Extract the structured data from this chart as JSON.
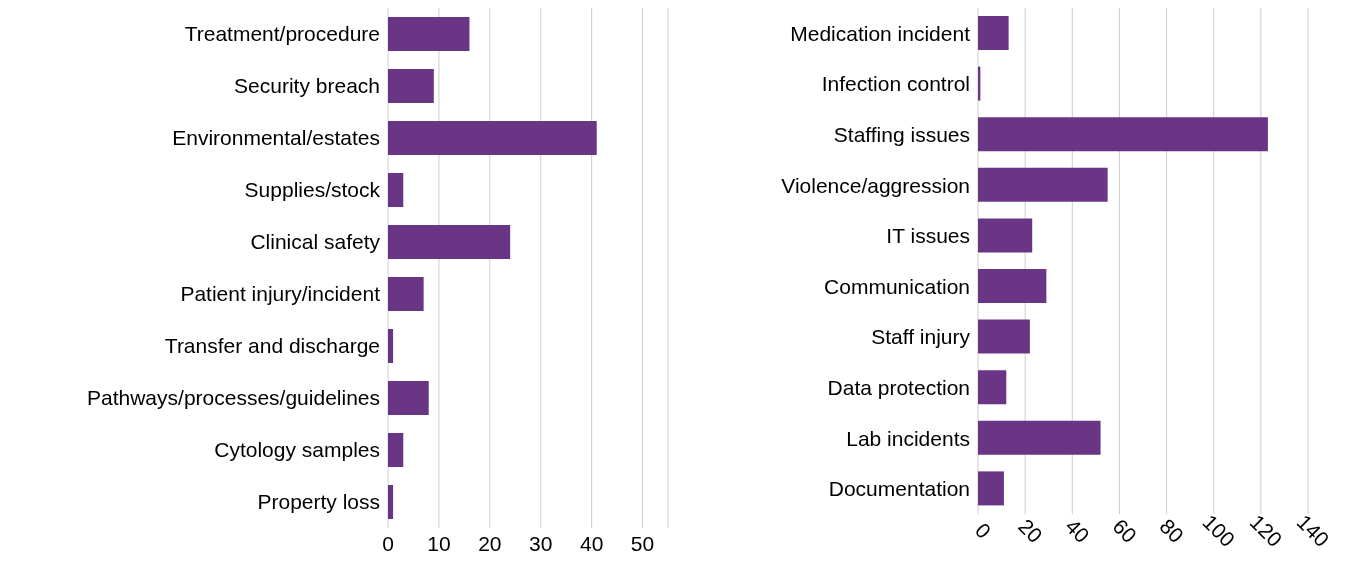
{
  "chart_data": [
    {
      "type": "bar",
      "orientation": "horizontal",
      "categories": [
        "Treatment/procedure",
        "Security breach",
        "Environmental/estates",
        "Supplies/stock",
        "Clinical safety",
        "Patient injury/incident",
        "Transfer and discharge",
        "Pathways/processes/guidelines",
        "Cytology samples",
        "Property loss"
      ],
      "values": [
        16,
        9,
        41,
        3,
        24,
        7,
        1,
        8,
        3,
        1
      ],
      "color": "#6a3585",
      "xlim": [
        0,
        55
      ],
      "xticks": [
        0,
        10,
        20,
        30,
        40,
        50
      ],
      "grid": "x"
    },
    {
      "type": "bar",
      "orientation": "horizontal",
      "categories": [
        "Medication incident",
        "Infection control",
        "Staffing issues",
        "Violence/aggression",
        "IT issues",
        "Communication",
        "Staff injury",
        "Data protection",
        "Lab incidents",
        "Documentation"
      ],
      "values": [
        13,
        1,
        123,
        55,
        23,
        29,
        22,
        12,
        52,
        11
      ],
      "color": "#6a3585",
      "xlim": [
        0,
        140
      ],
      "xticks": [
        0,
        20,
        40,
        60,
        80,
        100,
        120,
        140
      ],
      "grid": "x"
    }
  ]
}
